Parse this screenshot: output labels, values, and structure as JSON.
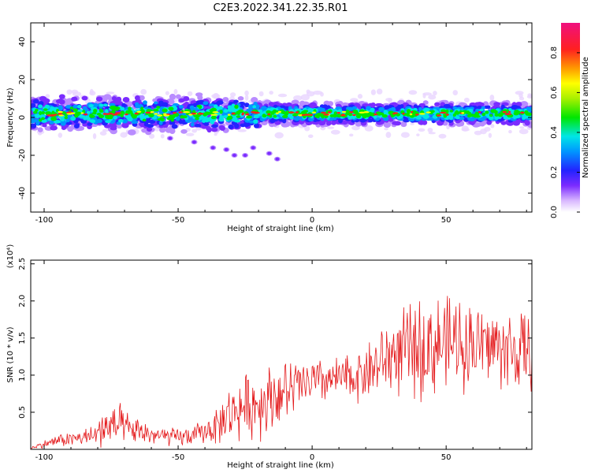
{
  "title": "C2E3.2022.341.22.35.R01",
  "colors": {
    "signal": "#e41a1c",
    "noise": "#7b2cff",
    "axis": "#000000"
  },
  "chart_data": [
    {
      "type": "heatmap",
      "xlabel": "Height of straight line (km)",
      "ylabel": "Frequency (Hz)",
      "xlim": [
        -105,
        82
      ],
      "ylim": [
        -50,
        50
      ],
      "xticks": [
        -100,
        -50,
        0,
        50
      ],
      "yticks": [
        -40,
        -20,
        0,
        20,
        40
      ],
      "grid": false,
      "colorbar": {
        "label": "Normalized spectral amplitude",
        "range": [
          0.0,
          0.95
        ],
        "ticks": [
          0.0,
          0.2,
          0.4,
          0.6,
          0.8
        ],
        "tick_labels": [
          "0.0",
          "0.2",
          "0.4",
          "0.6",
          "0.8"
        ]
      },
      "signal_band": {
        "center_hz": 2,
        "half_width_hz": 6,
        "x_range": [
          -105,
          82
        ]
      },
      "stray_echoes": [
        {
          "x": -53,
          "y": -11
        },
        {
          "x": -44,
          "y": -13
        },
        {
          "x": -37,
          "y": -16
        },
        {
          "x": -32,
          "y": -17
        },
        {
          "x": -29,
          "y": -20
        },
        {
          "x": -25,
          "y": -20
        },
        {
          "x": -22,
          "y": -16
        },
        {
          "x": -16,
          "y": -19
        },
        {
          "x": -13,
          "y": -22
        }
      ]
    },
    {
      "type": "line",
      "xlabel": "Height of straight line (km)",
      "ylabel": "SNR (10 * v/v)",
      "multiplier_label": "(x10⁴)",
      "xlim": [
        -105,
        82
      ],
      "ylim": [
        0,
        2.55
      ],
      "xticks": [
        -100,
        -50,
        0,
        50
      ],
      "yticks": [
        0.5,
        1.0,
        1.5,
        2.0,
        2.5
      ],
      "ytick_labels": [
        "0.5",
        "1.0",
        "1.5",
        "2.0",
        "2.5"
      ],
      "grid": false,
      "series": [
        {
          "color": "#e41a1c",
          "x": [
            -105,
            -100,
            -95,
            -90,
            -85,
            -80,
            -78,
            -75,
            -72,
            -70,
            -65,
            -60,
            -55,
            -50,
            -45,
            -40,
            -35,
            -30,
            -25,
            -20,
            -15,
            -10,
            -5,
            0,
            5,
            10,
            15,
            20,
            25,
            30,
            35,
            40,
            45,
            50,
            55,
            60,
            65,
            70,
            75,
            80,
            82
          ],
          "mean": [
            0.02,
            0.07,
            0.12,
            0.14,
            0.16,
            0.2,
            0.28,
            0.3,
            0.32,
            0.27,
            0.24,
            0.2,
            0.17,
            0.16,
            0.18,
            0.24,
            0.33,
            0.5,
            0.58,
            0.62,
            0.72,
            0.76,
            0.85,
            0.9,
            0.93,
            0.95,
            0.97,
            1.05,
            1.15,
            1.28,
            1.32,
            1.35,
            1.4,
            1.42,
            1.45,
            1.42,
            1.4,
            1.38,
            1.32,
            1.28,
            1.25
          ],
          "spread": [
            0.02,
            0.06,
            0.1,
            0.12,
            0.14,
            0.2,
            0.4,
            0.3,
            0.35,
            0.28,
            0.2,
            0.18,
            0.15,
            0.15,
            0.15,
            0.2,
            0.3,
            0.45,
            0.5,
            0.55,
            0.55,
            0.5,
            0.45,
            0.4,
            0.35,
            0.35,
            0.4,
            0.45,
            0.55,
            0.65,
            0.7,
            0.8,
            0.85,
            0.75,
            0.75,
            0.7,
            0.65,
            0.65,
            0.7,
            0.65,
            0.5
          ]
        }
      ]
    }
  ]
}
